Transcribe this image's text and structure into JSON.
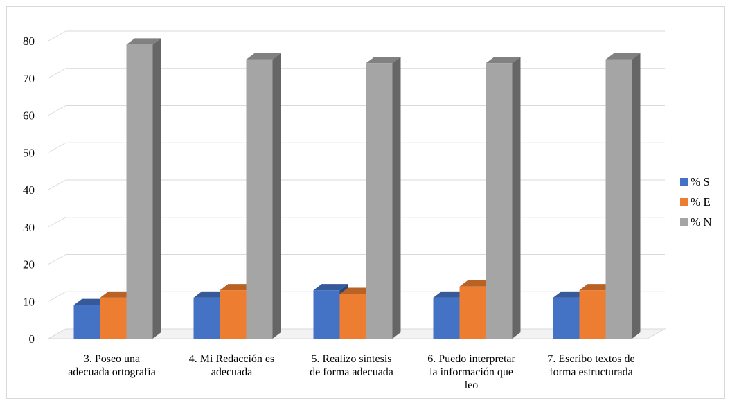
{
  "chart_data": {
    "type": "bar",
    "title": "",
    "xlabel": "",
    "ylabel": "",
    "ylim": [
      0,
      80
    ],
    "yticks": [
      0,
      10,
      20,
      30,
      40,
      50,
      60,
      70,
      80
    ],
    "grid": true,
    "legend_position": "right",
    "categories": [
      [
        "3. Poseo una",
        "adecuada ortografía"
      ],
      [
        "4. Mi Redacción es",
        "adecuada"
      ],
      [
        "5. Realizo síntesis",
        "de forma adecuada"
      ],
      [
        "6. Puedo interpretar",
        "la información que",
        "leo"
      ],
      [
        "7. Escribo textos de",
        "forma estructurada"
      ]
    ],
    "series": [
      {
        "name": "% S",
        "color": "#4472c4",
        "values": [
          9,
          11,
          13,
          11,
          11
        ]
      },
      {
        "name": "% E",
        "color": "#ed7d31",
        "values": [
          11,
          13,
          12,
          14,
          13
        ]
      },
      {
        "name": "% N",
        "color": "#a5a5a5",
        "values": [
          79,
          75,
          74,
          74,
          75
        ]
      }
    ]
  }
}
